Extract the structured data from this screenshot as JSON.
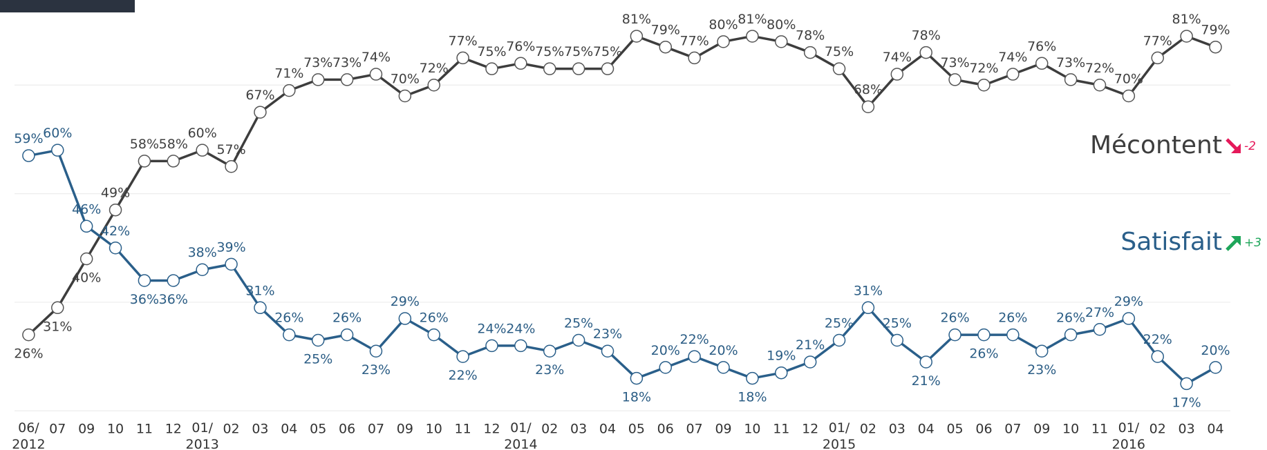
{
  "chart_data": {
    "type": "line",
    "categories": [
      "06/2012",
      "07",
      "09",
      "10",
      "11",
      "12",
      "01/2013",
      "02",
      "03",
      "04",
      "05",
      "06",
      "07",
      "09",
      "10",
      "11",
      "12",
      "01/2014",
      "02",
      "03",
      "04",
      "05",
      "06",
      "07",
      "09",
      "10",
      "11",
      "12",
      "01/2015",
      "02",
      "03",
      "04",
      "05",
      "06",
      "07",
      "09",
      "10",
      "11",
      "01/2016",
      "02",
      "03",
      "04"
    ],
    "series": [
      {
        "name": "Mécontent",
        "color": "#3d3d3d",
        "change": "-2",
        "change_color": "#e5195a",
        "values": [
          26,
          31,
          40,
          49,
          58,
          58,
          60,
          57,
          67,
          71,
          73,
          73,
          74,
          70,
          72,
          77,
          75,
          76,
          75,
          75,
          75,
          81,
          79,
          77,
          80,
          81,
          80,
          78,
          75,
          68,
          74,
          78,
          73,
          72,
          74,
          76,
          73,
          72,
          70,
          77,
          81,
          79
        ],
        "value_labels": [
          "26%",
          "31%",
          "40%",
          "49%",
          "58%",
          "58%",
          "60%",
          "57%",
          "67%",
          "71%",
          "73%",
          "73%",
          "74%",
          "70%",
          "72%",
          "77%",
          "75%",
          "76%",
          "75%",
          "75%",
          "75%",
          "81%",
          "79%",
          "77%",
          "80%",
          "81%",
          "80%",
          "78%",
          "75%",
          "68%",
          "74%",
          "78%",
          "73%",
          "72%",
          "74%",
          "76%",
          "73%",
          "72%",
          "70%",
          "77%",
          "81%",
          "79%"
        ]
      },
      {
        "name": "Satisfait",
        "color": "#2a5f8a",
        "change": "+3",
        "change_color": "#1ea65a",
        "values": [
          59,
          60,
          46,
          42,
          36,
          36,
          38,
          39,
          31,
          26,
          25,
          26,
          23,
          29,
          26,
          22,
          24,
          24,
          23,
          25,
          23,
          18,
          20,
          22,
          20,
          18,
          19,
          21,
          25,
          31,
          25,
          21,
          26,
          26,
          26,
          23,
          26,
          27,
          29,
          22,
          17,
          20
        ],
        "value_labels": [
          "59%",
          "60%",
          "46%",
          "42%",
          "36%",
          "36%",
          "38%",
          "39%",
          "31%",
          "26%",
          "25%",
          "26%",
          "23%",
          "29%",
          "26%",
          "22%",
          "24%",
          "24%",
          "23%",
          "25%",
          "23%",
          "18%",
          "20%",
          "22%",
          "20%",
          "18%",
          "19%",
          "21%",
          "25%",
          "31%",
          "25%",
          "21%",
          "26%",
          "26%",
          "26%",
          "23%",
          "26%",
          "27%",
          "29%",
          "22%",
          "17%",
          "20%"
        ]
      }
    ],
    "ylim": [
      10,
      85
    ],
    "yticks": [
      12,
      32,
      52,
      72
    ],
    "grid": true
  }
}
